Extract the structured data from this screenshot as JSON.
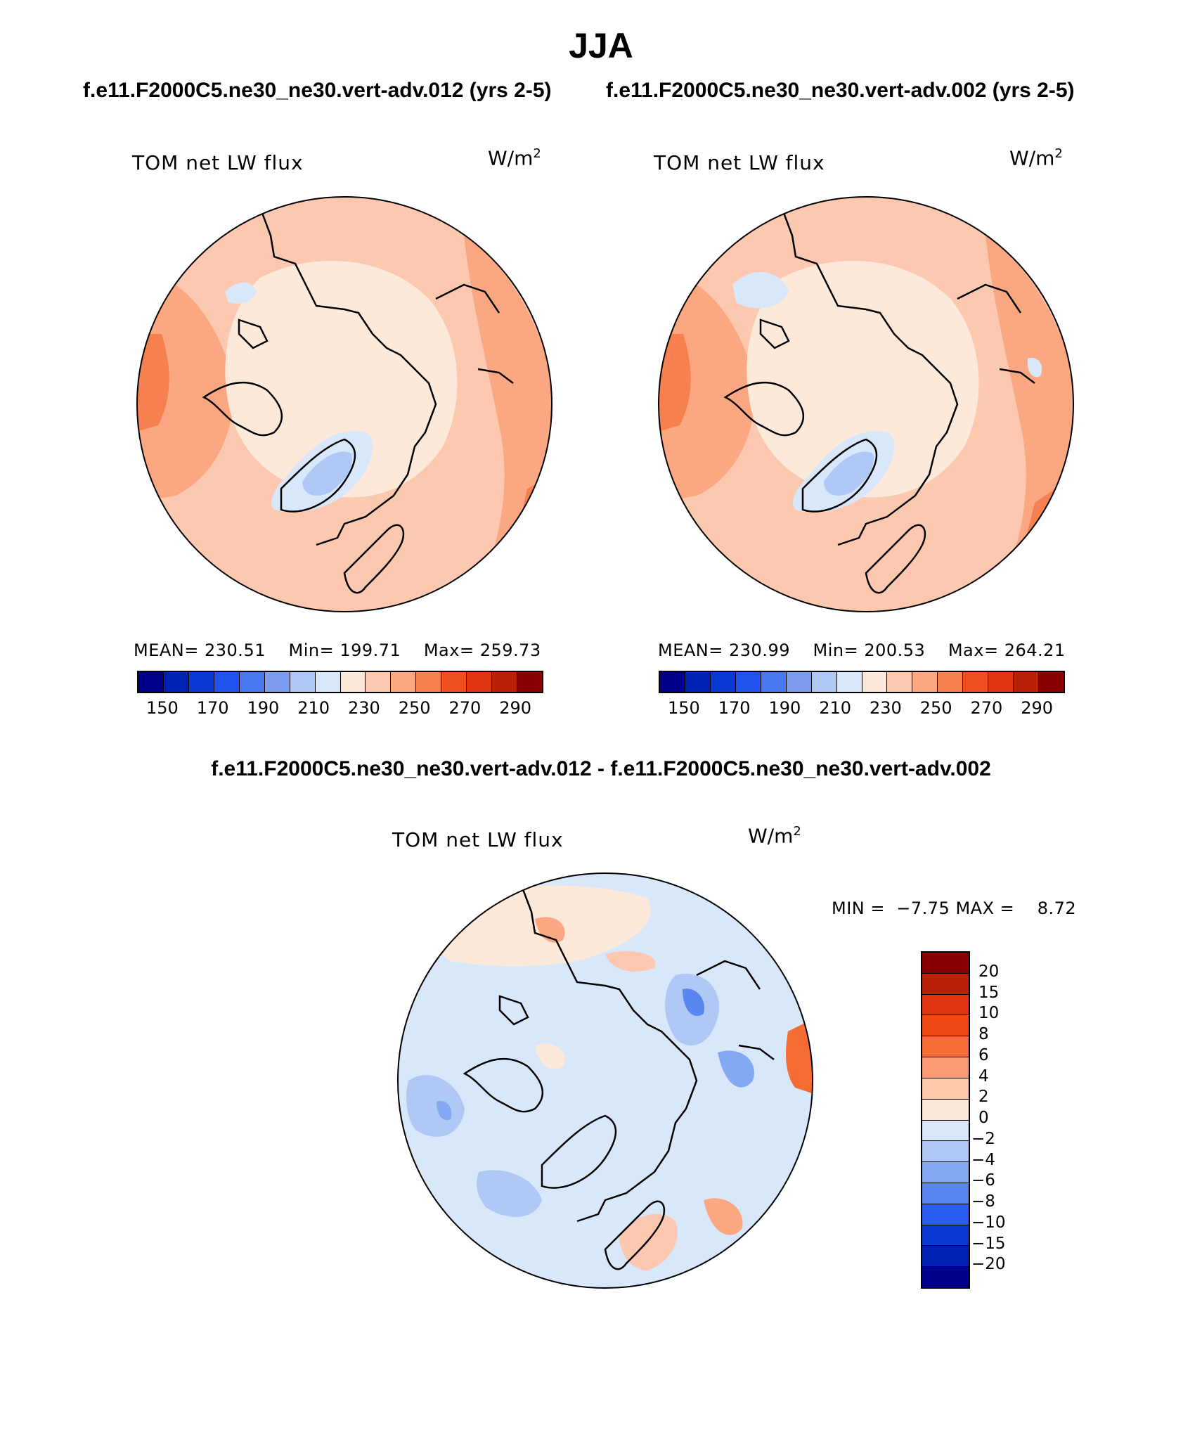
{
  "title": "JJA",
  "panels": [
    {
      "case_title": "f.e11.F2000C5.ne30_ne30.vert-adv.012 (yrs 2-5)",
      "variable": "TOM net LW flux",
      "units_base": "W/m",
      "units_exp": "2",
      "mean_label": "MEAN=",
      "mean": "230.51",
      "min_label": "Min=",
      "min": "199.71",
      "max_label": "Max=",
      "max": "259.73"
    },
    {
      "case_title": "f.e11.F2000C5.ne30_ne30.vert-adv.002 (yrs 2-5)",
      "variable": "TOM net LW flux",
      "units_base": "W/m",
      "units_exp": "2",
      "mean_label": "MEAN=",
      "mean": "230.99",
      "min_label": "Min=",
      "min": "200.53",
      "max_label": "Max=",
      "max": "264.21"
    }
  ],
  "abs_colorbar": {
    "colors": [
      "#00008b",
      "#0022b4",
      "#0a3ad6",
      "#2052ee",
      "#4a78f0",
      "#7c9cf2",
      "#b0c8f6",
      "#d8e8fa",
      "#fde9da",
      "#fcc8b0",
      "#fba882",
      "#f78050",
      "#f05020",
      "#e03510",
      "#b82008",
      "#880000"
    ],
    "tick_labels": [
      "150",
      "170",
      "190",
      "210",
      "230",
      "250",
      "270",
      "290"
    ]
  },
  "diff": {
    "title": "f.e11.F2000C5.ne30_ne30.vert-adv.012 - f.e11.F2000C5.ne30_ne30.vert-adv.002",
    "variable": "TOM net LW flux",
    "units_base": "W/m",
    "units_exp": "2",
    "min_label": "MIN =",
    "min": "−7.75",
    "max_label": "MAX =",
    "max": "8.72",
    "colorbar_colors_top_to_bottom": [
      "#880000",
      "#b82008",
      "#e03510",
      "#f04a18",
      "#f56d35",
      "#fa9a70",
      "#fdc8a8",
      "#fde9da",
      "#d8e8fa",
      "#b0c8f6",
      "#85a8f2",
      "#5a86f0",
      "#2a5ef0",
      "#0a3ad6",
      "#0022b4",
      "#00008b"
    ],
    "colorbar_labels_top_to_bottom": [
      "20",
      "15",
      "10",
      "8",
      "6",
      "4",
      "2",
      "0",
      "−2",
      "−4",
      "−6",
      "−8",
      "−10",
      "−15",
      "−20"
    ]
  },
  "chart_data": [
    {
      "type": "heatmap",
      "projection": "polar stereographic (North Pole)",
      "title": "TOM net LW flux",
      "case": "f.e11.F2000C5.ne30_ne30.vert-adv.012 (yrs 2-5)",
      "units": "W/m2",
      "mean": 230.51,
      "min": 199.71,
      "max": 259.73,
      "levels": [
        150,
        160,
        170,
        180,
        190,
        200,
        210,
        220,
        230,
        240,
        250,
        260,
        270,
        280,
        290
      ]
    },
    {
      "type": "heatmap",
      "projection": "polar stereographic (North Pole)",
      "title": "TOM net LW flux",
      "case": "f.e11.F2000C5.ne30_ne30.vert-adv.002 (yrs 2-5)",
      "units": "W/m2",
      "mean": 230.99,
      "min": 200.53,
      "max": 264.21,
      "levels": [
        150,
        160,
        170,
        180,
        190,
        200,
        210,
        220,
        230,
        240,
        250,
        260,
        270,
        280,
        290
      ]
    },
    {
      "type": "heatmap",
      "projection": "polar stereographic (North Pole)",
      "title": "TOM net LW flux (difference)",
      "case": "f.e11.F2000C5.ne30_ne30.vert-adv.012 - f.e11.F2000C5.ne30_ne30.vert-adv.002",
      "units": "W/m2",
      "min": -7.75,
      "max": 8.72,
      "levels": [
        -20,
        -15,
        -10,
        -8,
        -6,
        -4,
        -2,
        0,
        2,
        4,
        6,
        8,
        10,
        15,
        20
      ]
    }
  ]
}
